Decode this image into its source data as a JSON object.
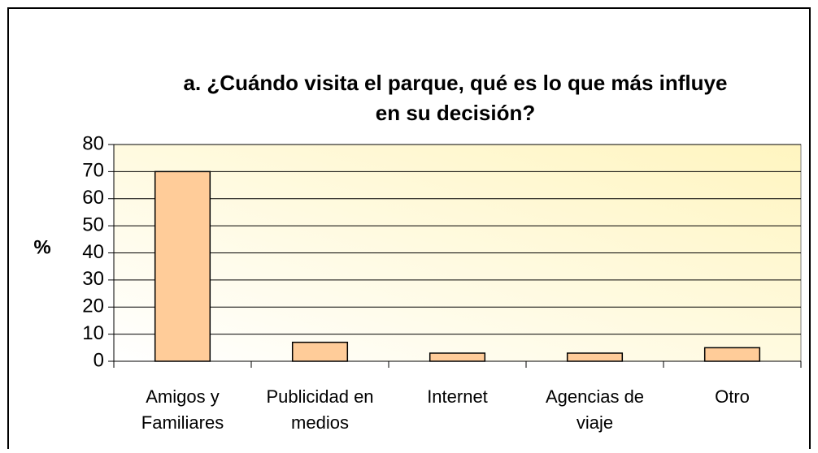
{
  "chart_data": {
    "type": "bar",
    "title": [
      "a. ¿Cuándo visita el parque, qué es lo que más influye",
      "en su decisión?"
    ],
    "y_label": "%",
    "categories": [
      "Amigos y Familiares",
      "Publicidad en medios",
      "Internet",
      "Agencias de viaje",
      "Otro"
    ],
    "values": [
      70,
      7,
      3,
      3,
      5
    ],
    "color": "#ffcc99",
    "ylim": [
      0,
      80
    ],
    "yticks": [
      0,
      10,
      20,
      30,
      40,
      50,
      60,
      70,
      80
    ],
    "grid": true
  }
}
